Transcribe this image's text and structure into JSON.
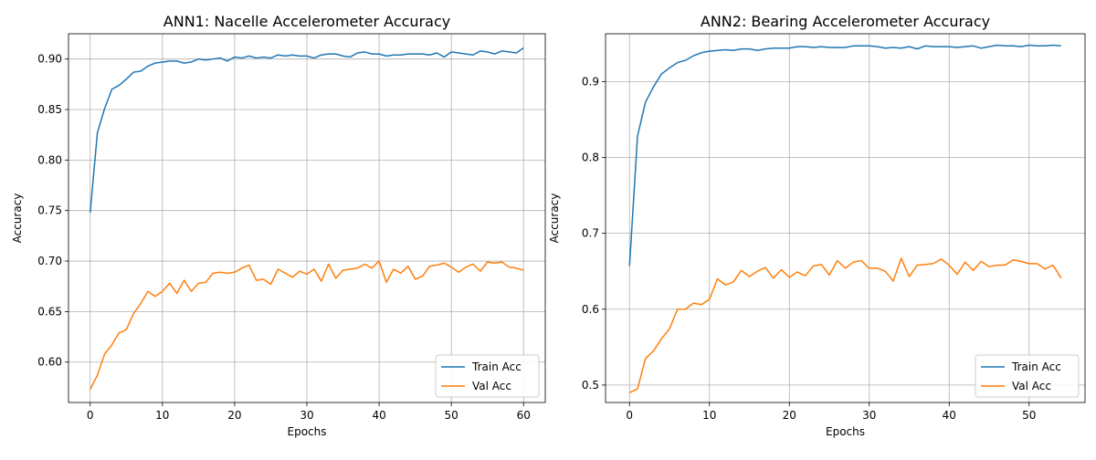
{
  "chart_data": [
    {
      "type": "line",
      "title": "ANN1: Nacelle Accelerometer Accuracy",
      "xlabel": "Epochs",
      "ylabel": "Accuracy",
      "xlim": [
        -3,
        63
      ],
      "ylim": [
        0.56,
        0.925
      ],
      "xticks": [
        0,
        10,
        20,
        30,
        40,
        50,
        60
      ],
      "yticks": [
        0.6,
        0.65,
        0.7,
        0.75,
        0.8,
        0.85,
        0.9
      ],
      "ytick_labels": [
        "0.60",
        "0.65",
        "0.70",
        "0.75",
        "0.80",
        "0.85",
        "0.90"
      ],
      "grid": true,
      "legend_position": "lower right",
      "x": [
        0,
        1,
        2,
        3,
        4,
        5,
        6,
        7,
        8,
        9,
        10,
        11,
        12,
        13,
        14,
        15,
        16,
        17,
        18,
        19,
        20,
        21,
        22,
        23,
        24,
        25,
        26,
        27,
        28,
        29,
        30,
        31,
        32,
        33,
        34,
        35,
        36,
        37,
        38,
        39,
        40,
        41,
        42,
        43,
        44,
        45,
        46,
        47,
        48,
        49,
        50,
        51,
        52,
        53,
        54,
        55,
        56,
        57,
        58,
        59,
        60
      ],
      "series": [
        {
          "name": "Train Acc",
          "color": "#1f77b4",
          "values": [
            0.748,
            0.827,
            0.851,
            0.87,
            0.874,
            0.88,
            0.887,
            0.888,
            0.893,
            0.896,
            0.897,
            0.898,
            0.898,
            0.896,
            0.897,
            0.9,
            0.899,
            0.9,
            0.901,
            0.898,
            0.902,
            0.901,
            0.903,
            0.901,
            0.902,
            0.901,
            0.904,
            0.903,
            0.904,
            0.903,
            0.903,
            0.901,
            0.904,
            0.905,
            0.905,
            0.903,
            0.902,
            0.906,
            0.907,
            0.905,
            0.905,
            0.903,
            0.904,
            0.904,
            0.905,
            0.905,
            0.905,
            0.904,
            0.906,
            0.902,
            0.907,
            0.906,
            0.905,
            0.904,
            0.908,
            0.907,
            0.905,
            0.908,
            0.907,
            0.906,
            0.911
          ]
        },
        {
          "name": "Val Acc",
          "color": "#ff7f0e",
          "values": [
            0.573,
            0.587,
            0.608,
            0.617,
            0.629,
            0.632,
            0.648,
            0.658,
            0.67,
            0.665,
            0.67,
            0.678,
            0.668,
            0.681,
            0.67,
            0.678,
            0.679,
            0.688,
            0.689,
            0.688,
            0.689,
            0.693,
            0.696,
            0.681,
            0.682,
            0.677,
            0.692,
            0.688,
            0.684,
            0.69,
            0.687,
            0.692,
            0.68,
            0.697,
            0.683,
            0.691,
            0.692,
            0.693,
            0.697,
            0.693,
            0.7,
            0.679,
            0.692,
            0.688,
            0.695,
            0.682,
            0.685,
            0.695,
            0.696,
            0.698,
            0.694,
            0.689,
            0.694,
            0.697,
            0.69,
            0.699,
            0.698,
            0.699,
            0.694,
            0.693,
            0.691
          ]
        }
      ]
    },
    {
      "type": "line",
      "title": "ANN2: Bearing Accelerometer Accuracy",
      "xlabel": "Epochs",
      "ylabel": "Accuracy",
      "xlim": [
        -3,
        57
      ],
      "ylim": [
        0.477,
        0.963
      ],
      "xticks": [
        0,
        10,
        20,
        30,
        40,
        50
      ],
      "yticks": [
        0.5,
        0.6,
        0.7,
        0.8,
        0.9
      ],
      "ytick_labels": [
        "0.5",
        "0.6",
        "0.7",
        "0.8",
        "0.9"
      ],
      "grid": true,
      "legend_position": "lower right",
      "x": [
        0,
        1,
        2,
        3,
        4,
        5,
        6,
        7,
        8,
        9,
        10,
        11,
        12,
        13,
        14,
        15,
        16,
        17,
        18,
        19,
        20,
        21,
        22,
        23,
        24,
        25,
        26,
        27,
        28,
        29,
        30,
        31,
        32,
        33,
        34,
        35,
        36,
        37,
        38,
        39,
        40,
        41,
        42,
        43,
        44,
        45,
        46,
        47,
        48,
        49,
        50,
        51,
        52,
        53,
        54
      ],
      "series": [
        {
          "name": "Train Acc",
          "color": "#1f77b4",
          "values": [
            0.657,
            0.828,
            0.873,
            0.893,
            0.91,
            0.918,
            0.925,
            0.928,
            0.934,
            0.938,
            0.94,
            0.941,
            0.942,
            0.941,
            0.943,
            0.943,
            0.941,
            0.943,
            0.944,
            0.944,
            0.944,
            0.946,
            0.946,
            0.945,
            0.946,
            0.945,
            0.945,
            0.945,
            0.947,
            0.947,
            0.947,
            0.946,
            0.944,
            0.945,
            0.944,
            0.946,
            0.943,
            0.947,
            0.946,
            0.946,
            0.946,
            0.945,
            0.946,
            0.947,
            0.944,
            0.946,
            0.948,
            0.947,
            0.947,
            0.946,
            0.948,
            0.947,
            0.947,
            0.948,
            0.947
          ]
        },
        {
          "name": "Val Acc",
          "color": "#ff7f0e",
          "values": [
            0.49,
            0.495,
            0.535,
            0.545,
            0.561,
            0.574,
            0.6,
            0.6,
            0.608,
            0.606,
            0.613,
            0.64,
            0.632,
            0.636,
            0.651,
            0.643,
            0.65,
            0.655,
            0.641,
            0.652,
            0.642,
            0.649,
            0.644,
            0.657,
            0.659,
            0.645,
            0.664,
            0.654,
            0.662,
            0.664,
            0.654,
            0.654,
            0.65,
            0.637,
            0.667,
            0.643,
            0.658,
            0.659,
            0.66,
            0.666,
            0.658,
            0.646,
            0.662,
            0.651,
            0.663,
            0.656,
            0.658,
            0.658,
            0.665,
            0.663,
            0.66,
            0.66,
            0.653,
            0.658,
            0.641
          ]
        }
      ]
    }
  ]
}
